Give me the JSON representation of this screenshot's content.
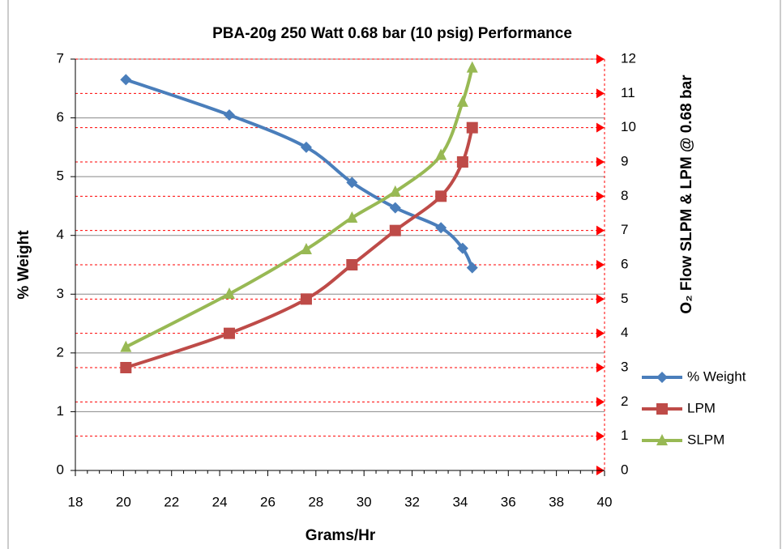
{
  "chart_data": {
    "type": "line",
    "title": "PBA-20g   250 Watt  0.68 bar (10 psig) Performance",
    "x_label": "Grams/Hr",
    "y_label": "% Weight",
    "y2_label": "O₂ Flow SLPM & LPM @ 0.68 bar",
    "x": [
      20.1,
      24.4,
      27.6,
      29.5,
      31.3,
      33.2,
      34.1,
      34.5
    ],
    "series": [
      {
        "name": "% Weight",
        "color": "#4a7ebb",
        "marker": "diamond",
        "values": [
          6.65,
          6.05,
          5.5,
          4.9,
          4.47,
          4.13,
          3.78,
          3.45
        ]
      },
      {
        "name": "LPM",
        "color": "#be4b48",
        "marker": "square",
        "axis": "y2",
        "values": [
          3,
          4,
          5,
          6,
          7,
          8,
          9,
          10
        ]
      },
      {
        "name": "SLPM",
        "color": "#98b954",
        "marker": "triangle",
        "axis": "y2",
        "values": [
          3.6,
          5.15,
          6.45,
          7.37,
          8.13,
          9.2,
          10.75,
          11.75
        ]
      }
    ],
    "xlim": [
      18,
      40
    ],
    "xticks": [
      18,
      20,
      22,
      24,
      26,
      28,
      30,
      32,
      34,
      36,
      38,
      40
    ],
    "ylim": [
      0,
      7
    ],
    "yticks": [
      0,
      1,
      2,
      3,
      4,
      5,
      6,
      7
    ],
    "y2lim": [
      0,
      12
    ],
    "y2ticks": [
      0,
      1,
      2,
      3,
      4,
      5,
      6,
      7,
      8,
      9,
      10,
      11,
      12
    ],
    "grid": true,
    "y2_grid_color": "#ff0000",
    "legend": "right"
  }
}
